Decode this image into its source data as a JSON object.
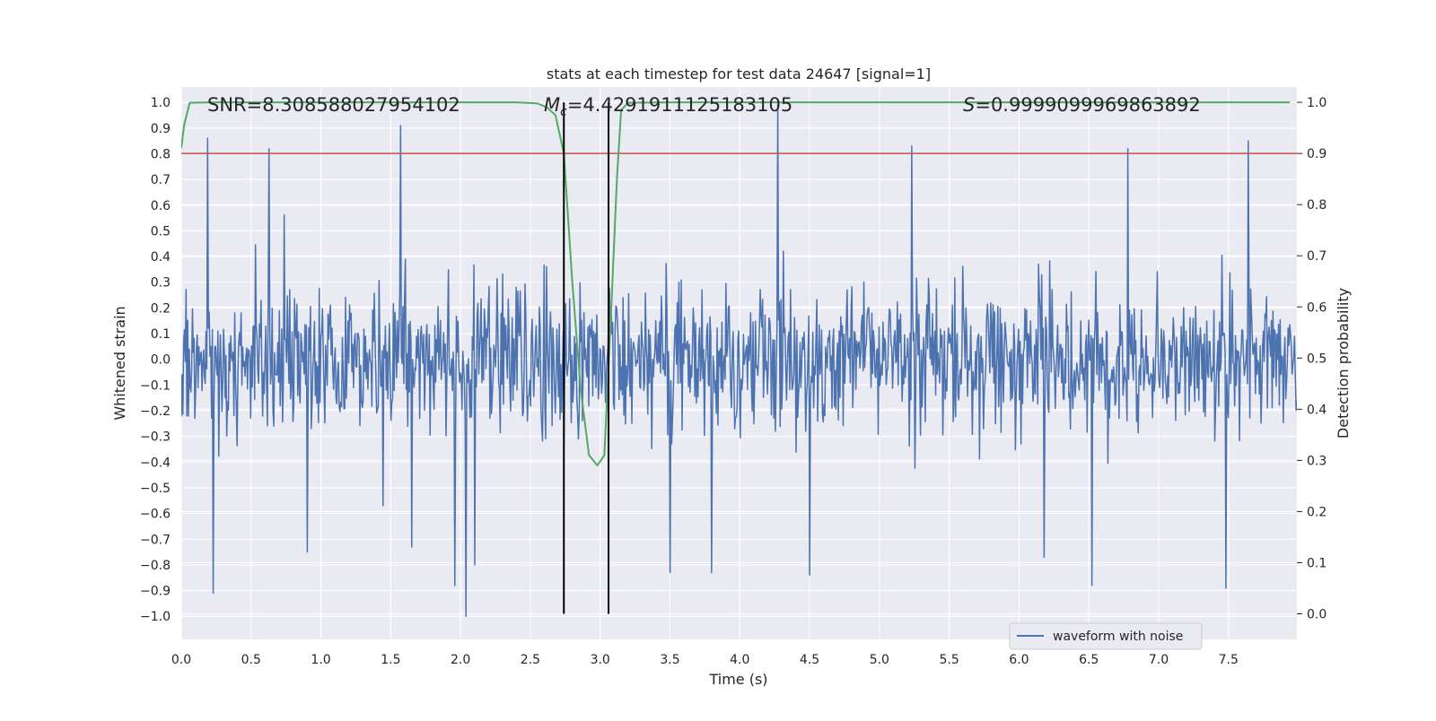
{
  "chart_data": {
    "type": "line",
    "title": "stats at each timestep for test data 24647 [signal=1]",
    "xlabel": "Time (s)",
    "ylabel_left": "Whitened strain",
    "ylabel_right": "Detection probability",
    "xlim": [
      0.0,
      7.99
    ],
    "ylim_left": [
      -1.09,
      1.06
    ],
    "ylim_right": [
      -0.05,
      1.03
    ],
    "x_ticks": [
      0.0,
      0.5,
      1.0,
      1.5,
      2.0,
      2.5,
      3.0,
      3.5,
      4.0,
      4.5,
      5.0,
      5.5,
      6.0,
      6.5,
      7.0,
      7.5
    ],
    "x_tick_labels": [
      "0.0",
      "0.5",
      "1.0",
      "1.5",
      "2.0",
      "2.5",
      "3.0",
      "3.5",
      "4.0",
      "4.5",
      "5.0",
      "5.5",
      "6.0",
      "6.5",
      "7.0",
      "7.5"
    ],
    "y_left_ticks": [
      1.0,
      0.9,
      0.8,
      0.7,
      0.6,
      0.5,
      0.4,
      0.3,
      0.2,
      0.1,
      0.0,
      -0.1,
      -0.2,
      -0.3,
      -0.4,
      -0.5,
      -0.6,
      -0.7,
      -0.8,
      -0.9,
      -1.0
    ],
    "y_left_tick_labels": [
      "1.0",
      "0.9",
      "0.8",
      "0.7",
      "0.6",
      "0.5",
      "0.4",
      "0.3",
      "0.2",
      "0.1",
      "0.0",
      "−0.1",
      "−0.2",
      "−0.3",
      "−0.4",
      "−0.5",
      "−0.6",
      "−0.7",
      "−0.8",
      "−0.9",
      "−1.0"
    ],
    "y_right_ticks": [
      1.0,
      0.9,
      0.8,
      0.7,
      0.6,
      0.5,
      0.4,
      0.3,
      0.2,
      0.1,
      0.0
    ],
    "y_right_tick_labels": [
      "1.0",
      "0.9",
      "0.8",
      "0.7",
      "0.6",
      "0.5",
      "0.4",
      "0.3",
      "0.2",
      "0.1",
      "0.0"
    ],
    "grid": true,
    "annotations": {
      "snr": "SNR=8.308588027954102",
      "mc_symbol": "M",
      "mc_sub": "c",
      "mc_value": "=4.4291911125183105",
      "s_symbol": "S",
      "s_value": "=0.9999099969863892"
    },
    "threshold_line": {
      "value": 0.9,
      "axis": "right",
      "color": "#c44e52"
    },
    "event_lines": {
      "x": [
        2.74,
        3.06
      ],
      "color": "#000000"
    },
    "series": [
      {
        "name": "waveform with noise",
        "axis": "left",
        "color": "#4c72b0",
        "x_start": 0.0,
        "x_end": 7.99,
        "n_samples": 1400,
        "sigma": 0.14,
        "seed": 24647,
        "peaks": [
          [
            0.19,
            0.86
          ],
          [
            0.63,
            0.82
          ],
          [
            1.57,
            0.91
          ],
          [
            4.27,
            0.99
          ],
          [
            5.23,
            0.83
          ],
          [
            6.78,
            0.82
          ],
          [
            7.64,
            0.85
          ],
          [
            2.04,
            -1.0
          ],
          [
            0.23,
            -0.91
          ],
          [
            6.52,
            -0.88
          ],
          [
            7.48,
            -0.89
          ],
          [
            1.96,
            -0.88
          ],
          [
            2.1,
            -0.8
          ],
          [
            3.8,
            -0.83
          ],
          [
            4.5,
            -0.84
          ],
          [
            3.5,
            -0.83
          ],
          [
            0.9,
            -0.75
          ],
          [
            6.18,
            -0.77
          ],
          [
            1.65,
            -0.73
          ]
        ]
      },
      {
        "name": "detection probability",
        "axis": "right",
        "color": "#55a868",
        "x": [
          0.0,
          0.02,
          0.06,
          0.2,
          0.5,
          1.0,
          1.5,
          2.0,
          2.4,
          2.55,
          2.62,
          2.68,
          2.74,
          2.8,
          2.86,
          2.92,
          2.98,
          3.03,
          3.08,
          3.12,
          3.15,
          3.2,
          3.5,
          4.0,
          5.0,
          6.0,
          7.0,
          7.5,
          7.94
        ],
        "y": [
          0.91,
          0.955,
          0.999,
          1.0,
          1.0,
          1.0,
          1.0,
          1.0,
          1.0,
          0.998,
          0.99,
          0.975,
          0.9,
          0.65,
          0.44,
          0.31,
          0.29,
          0.31,
          0.6,
          0.85,
          0.985,
          0.999,
          1.0,
          1.0,
          1.0,
          1.0,
          1.0,
          1.0,
          1.0
        ]
      }
    ],
    "legend": {
      "placement": "lower-right",
      "entries": [
        "waveform with noise"
      ]
    }
  },
  "colors": {
    "axes_bg": "#eaeaf2",
    "grid": "#ffffff",
    "text": "#262626",
    "legend_bg": "#eaeaf2",
    "legend_border": "#cccccc"
  }
}
